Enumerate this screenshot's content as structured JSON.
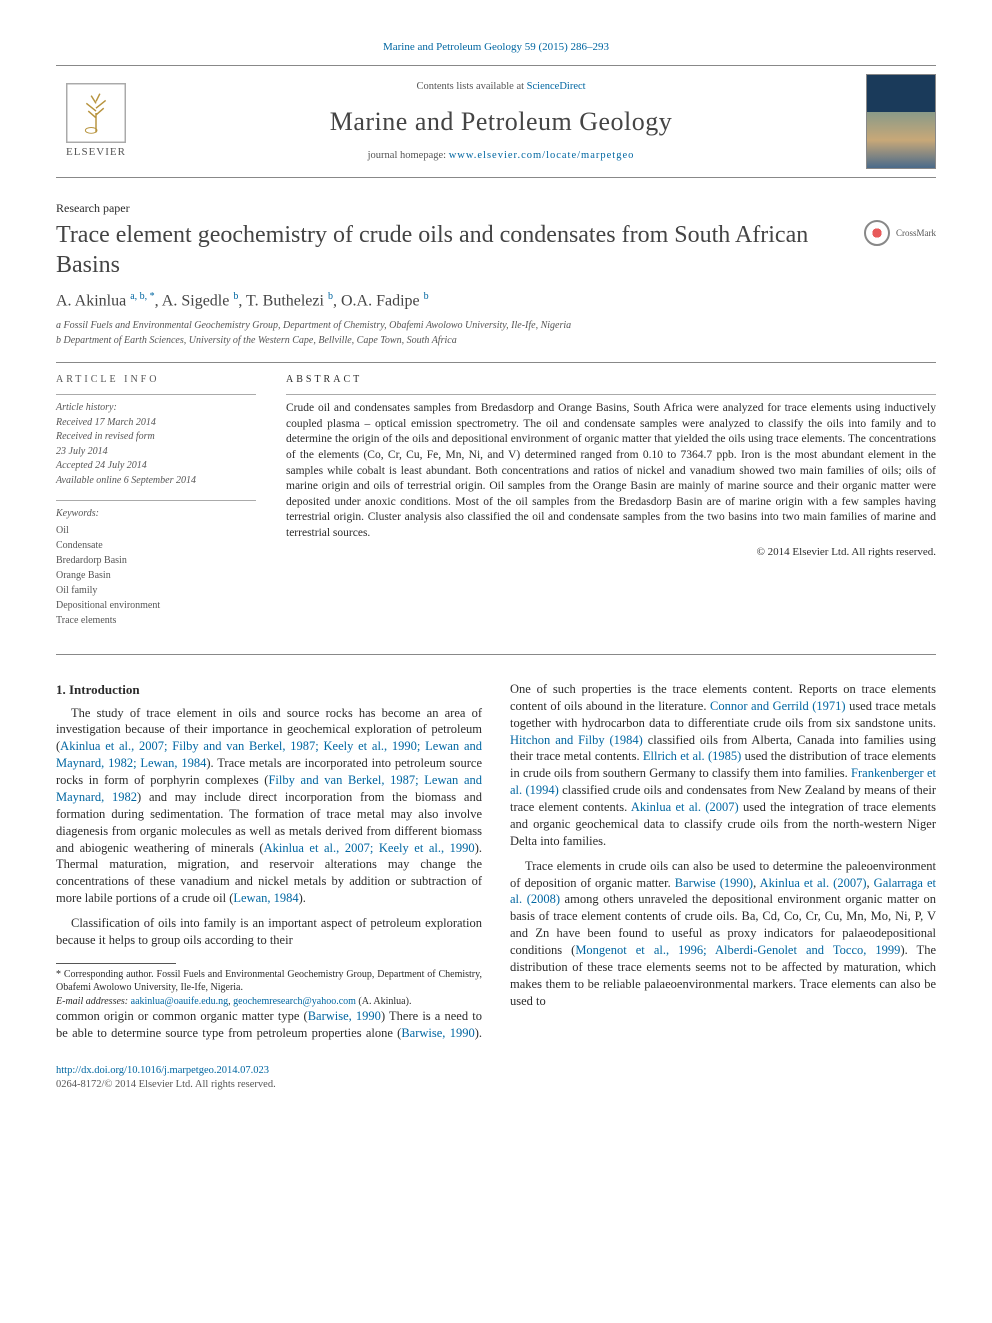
{
  "citation": "Marine and Petroleum Geology 59 (2015) 286–293",
  "header": {
    "publisher": "ELSEVIER",
    "contents_prefix": "Contents lists available at ",
    "contents_link": "ScienceDirect",
    "journal": "Marine and Petroleum Geology",
    "homepage_prefix": "journal homepage: ",
    "homepage_url": "www.elsevier.com/locate/marpetgeo"
  },
  "article": {
    "type": "Research paper",
    "title": "Trace element geochemistry of crude oils and condensates from South African Basins",
    "crossmark": "CrossMark",
    "authors_html": "A. Akinlua <sup>a, b, *</sup>, A. Sigedle <sup>b</sup>, T. Buthelezi <sup>b</sup>, O.A. Fadipe <sup>b</sup>",
    "affiliations": [
      "a Fossil Fuels and Environmental Geochemistry Group, Department of Chemistry, Obafemi Awolowo University, Ile-Ife, Nigeria",
      "b Department of Earth Sciences, University of the Western Cape, Bellville, Cape Town, South Africa"
    ]
  },
  "meta": {
    "info_head": "ARTICLE INFO",
    "history_label": "Article history:",
    "history": [
      "Received 17 March 2014",
      "Received in revised form",
      "23 July 2014",
      "Accepted 24 July 2014",
      "Available online 6 September 2014"
    ],
    "keywords_label": "Keywords:",
    "keywords": [
      "Oil",
      "Condensate",
      "Bredardorp Basin",
      "Orange Basin",
      "Oil family",
      "Depositional environment",
      "Trace elements"
    ]
  },
  "abstract": {
    "head": "ABSTRACT",
    "text": "Crude oil and condensates samples from Bredasdorp and Orange Basins, South Africa were analyzed for trace elements using inductively coupled plasma – optical emission spectrometry. The oil and condensate samples were analyzed to classify the oils into family and to determine the origin of the oils and depositional environment of organic matter that yielded the oils using trace elements. The concentrations of the elements (Co, Cr, Cu, Fe, Mn, Ni, and V) determined ranged from 0.10 to 7364.7 ppb. Iron is the most abundant element in the samples while cobalt is least abundant. Both concentrations and ratios of nickel and vanadium showed two main families of oils; oils of marine origin and oils of terrestrial origin. Oil samples from the Orange Basin are mainly of marine source and their organic matter were deposited under anoxic conditions. Most of the oil samples from the Bredasdorp Basin are of marine origin with a few samples having terrestrial origin. Cluster analysis also classified the oil and condensate samples from the two basins into two main families of marine and terrestrial sources.",
    "copyright": "© 2014 Elsevier Ltd. All rights reserved."
  },
  "body": {
    "sec1_head": "1. Introduction",
    "p1_a": "The study of trace element in oils and source rocks has become an area of investigation because of their importance in geochemical exploration of petroleum (",
    "p1_ref1": "Akinlua et al., 2007; Filby and van Berkel, 1987; Keely et al., 1990; Lewan and Maynard, 1982; Lewan, 1984",
    "p1_b": "). Trace metals are incorporated into petroleum source rocks in form of porphyrin complexes (",
    "p1_ref2": "Filby and van Berkel, 1987; Lewan and Maynard, 1982",
    "p1_c": ") and may include direct incorporation from the biomass and formation during sedimentation. The formation of trace metal may also involve diagenesis from organic molecules as well as metals derived from different biomass and abiogenic weathering of minerals (",
    "p1_ref3": "Akinlua et al., 2007; Keely et al., 1990",
    "p1_d": "). Thermal maturation, migration, and reservoir alterations may change the concentrations of these vanadium and nickel metals by addition or subtraction of more labile portions of a crude oil (",
    "p1_ref4": "Lewan, 1984",
    "p1_e": ").",
    "p2": "Classification of oils into family is an important aspect of petroleum exploration because it helps to group oils according to their",
    "p3_a": "common origin or common organic matter type (",
    "p3_ref1": "Barwise, 1990",
    "p3_b": ") There is a need to be able to determine source type from petroleum properties alone (",
    "p3_ref2": "Barwise, 1990",
    "p3_c": "). One of such properties is the trace elements content. Reports on trace elements content of oils abound in the literature. ",
    "p3_ref3": "Connor and Gerrild (1971)",
    "p3_d": " used trace metals together with hydrocarbon data to differentiate crude oils from six sandstone units. ",
    "p3_ref4": "Hitchon and Filby (1984)",
    "p3_e": " classified oils from Alberta, Canada into families using their trace metal contents. ",
    "p3_ref5": "Ellrich et al. (1985)",
    "p3_f": " used the distribution of trace elements in crude oils from southern Germany to classify them into families. ",
    "p3_ref6": "Frankenberger et al. (1994)",
    "p3_g": " classified crude oils and condensates from New Zealand by means of their trace element contents. ",
    "p3_ref7": "Akinlua et al. (2007)",
    "p3_h": " used the integration of trace elements and organic geochemical data to classify crude oils from the north-western Niger Delta into families.",
    "p4_a": "Trace elements in crude oils can also be used to determine the paleoenvironment of deposition of organic matter. ",
    "p4_ref1": "Barwise (1990)",
    "p4_b": ", ",
    "p4_ref2": "Akinlua et al. (2007)",
    "p4_c": ", ",
    "p4_ref3": "Galarraga et al. (2008)",
    "p4_d": " among others unraveled the depositional environment organic matter on basis of trace element contents of crude oils. Ba, Cd, Co, Cr, Cu, Mn, Mo, Ni, P, V and Zn have been found to useful as proxy indicators for palaeodepositional conditions (",
    "p4_ref4": "Mongenot et al., 1996; Alberdi-Genolet and Tocco, 1999",
    "p4_e": "). The distribution of these trace elements seems not to be affected by maturation, which makes them to be reliable palaeoenvironmental markers. Trace elements can also be used to"
  },
  "footnotes": {
    "corr": "* Corresponding author. Fossil Fuels and Environmental Geochemistry Group, Department of Chemistry, Obafemi Awolowo University, Ile-Ife, Nigeria.",
    "email_label": "E-mail addresses:",
    "email1": "aakinlua@oauife.edu.ng",
    "email_sep": ", ",
    "email2": "geochemresearch@yahoo.com",
    "email_tail": " (A. Akinlua)."
  },
  "footer": {
    "doi": "http://dx.doi.org/10.1016/j.marpetgeo.2014.07.023",
    "issn_copy": "0264-8172/© 2014 Elsevier Ltd. All rights reserved."
  },
  "colors": {
    "link": "#0066a1",
    "text": "#2b2b2b",
    "muted": "#555555",
    "rule": "#888888"
  }
}
